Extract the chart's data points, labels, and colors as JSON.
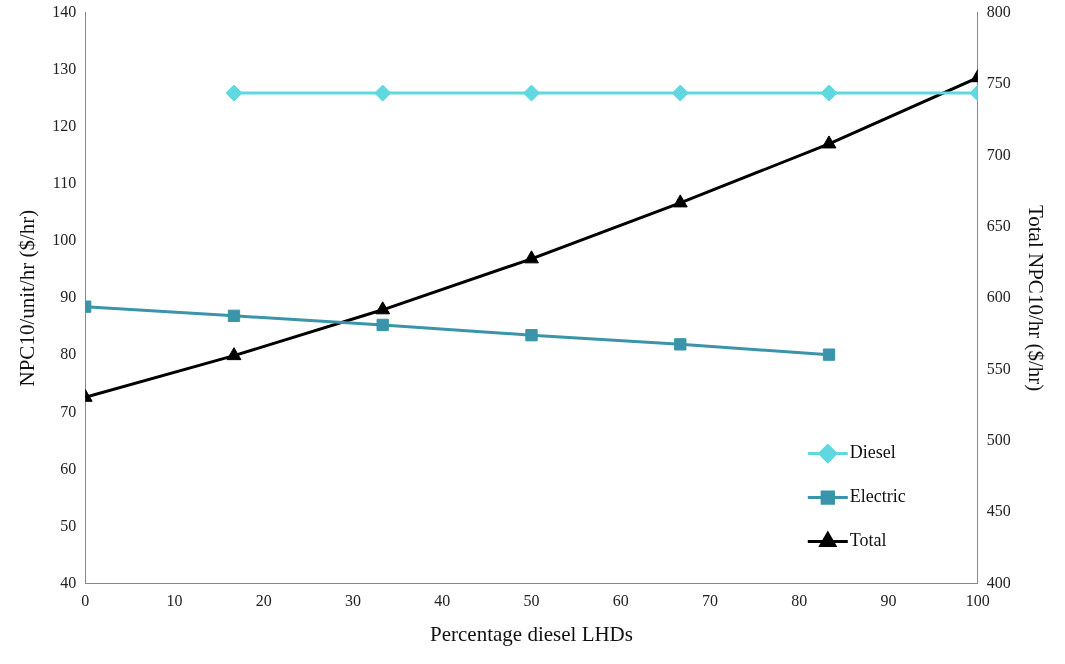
{
  "chart_data": {
    "type": "line",
    "xlabel": "Percentage diesel LHDs",
    "ylabel": "NPC10/unit/hr ($/hr)",
    "y2label": "Total NPC10/hr ($/hr)",
    "x": [
      0,
      16.67,
      33.33,
      50,
      66.67,
      83.33,
      100
    ],
    "series": [
      {
        "name": "Diesel",
        "color": "#5fd8e0",
        "marker": "diamond",
        "values": [
          null,
          125.9,
          125.9,
          125.9,
          125.9,
          125.9,
          125.9
        ]
      },
      {
        "name": "Electric",
        "color": "#3a94aa",
        "marker": "square",
        "values": [
          88.5,
          86.9,
          85.3,
          83.5,
          81.9,
          80.1,
          null
        ]
      },
      {
        "name": "Total",
        "color": "#000000",
        "marker": "triangle",
        "axis": "y2",
        "values": [
          530.5,
          559.7,
          591.8,
          627.5,
          666.7,
          708,
          754.4
        ]
      }
    ],
    "xlim": [
      0,
      100
    ],
    "xticks": [
      0,
      10,
      20,
      30,
      40,
      50,
      60,
      70,
      80,
      90,
      100
    ],
    "ylim": [
      40,
      140
    ],
    "yticks": [
      40,
      50,
      60,
      70,
      80,
      90,
      100,
      110,
      120,
      130,
      140
    ],
    "y2lim": [
      400,
      800
    ],
    "y2ticks": [
      400,
      450,
      500,
      550,
      600,
      650,
      700,
      750,
      800
    ],
    "grid": false,
    "legend": "bottom right"
  }
}
